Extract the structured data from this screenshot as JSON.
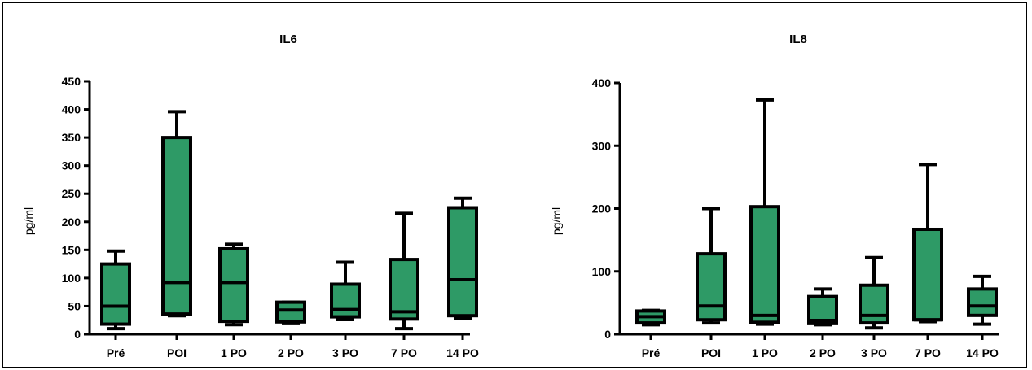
{
  "colors": {
    "box_fill": "#2e9a66",
    "stroke": "#000000"
  },
  "chart_data": [
    {
      "type": "box",
      "title": "IL6",
      "xlabel": "",
      "ylabel": "pg/ml",
      "ylim": [
        0,
        450
      ],
      "yticks": [
        "0",
        "50",
        "100",
        "150",
        "200",
        "250",
        "300",
        "350",
        "400",
        "450"
      ],
      "categories": [
        "Pré",
        "POI",
        "1 PO",
        "2 PO",
        "3 PO",
        "7 PO",
        "14 PO"
      ],
      "boxes": [
        {
          "min": 10,
          "q1": 18,
          "median": 50,
          "q3": 125,
          "max": 148
        },
        {
          "min": 33,
          "q1": 36,
          "median": 92,
          "q3": 350,
          "max": 396
        },
        {
          "min": 17,
          "q1": 23,
          "median": 92,
          "q3": 152,
          "max": 160
        },
        {
          "min": 19,
          "q1": 22,
          "median": 43,
          "q3": 57,
          "max": 57
        },
        {
          "min": 26,
          "q1": 31,
          "median": 44,
          "q3": 89,
          "max": 128
        },
        {
          "min": 10,
          "q1": 27,
          "median": 40,
          "q3": 133,
          "max": 215
        },
        {
          "min": 28,
          "q1": 33,
          "median": 97,
          "q3": 225,
          "max": 242
        }
      ]
    },
    {
      "type": "box",
      "title": "IL8",
      "xlabel": "",
      "ylabel": "pg/ml",
      "ylim": [
        0,
        400
      ],
      "yticks": [
        "0",
        "100",
        "200",
        "300",
        "400"
      ],
      "categories": [
        "Pré",
        "POI",
        "1 PO",
        "2 PO",
        "3 PO",
        "7 PO",
        "14 PO"
      ],
      "boxes": [
        {
          "min": 15,
          "q1": 18,
          "median": 28,
          "q3": 37,
          "max": 38
        },
        {
          "min": 18,
          "q1": 23,
          "median": 45,
          "q3": 128,
          "max": 200
        },
        {
          "min": 16,
          "q1": 19,
          "median": 30,
          "q3": 203,
          "max": 373
        },
        {
          "min": 15,
          "q1": 17,
          "median": 22,
          "q3": 60,
          "max": 72
        },
        {
          "min": 10,
          "q1": 18,
          "median": 30,
          "q3": 78,
          "max": 122
        },
        {
          "min": 20,
          "q1": 23,
          "median": 23,
          "q3": 167,
          "max": 270
        },
        {
          "min": 16,
          "q1": 30,
          "median": 45,
          "q3": 72,
          "max": 92
        }
      ]
    }
  ]
}
